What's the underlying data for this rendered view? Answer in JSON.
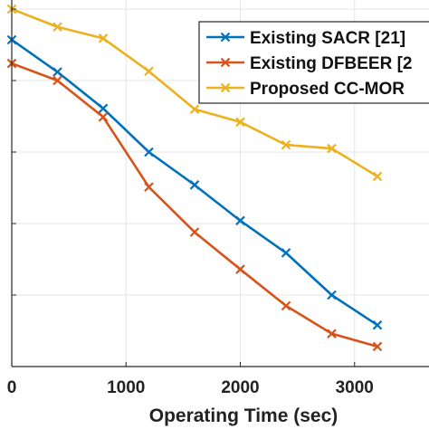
{
  "chart_data": {
    "type": "line",
    "title": "",
    "xlabel": "Operating Time (sec)",
    "ylabel": "",
    "xlim": [
      0,
      3200
    ],
    "ylim": [
      0.1,
      0.6
    ],
    "x_ticks": [
      0,
      1000,
      2000,
      3000
    ],
    "x_tick_labels": [
      "0",
      "1000",
      "2000",
      "3000"
    ],
    "y_ticks": [
      0.1,
      0.2,
      0.3,
      0.4,
      0.5,
      0.6
    ],
    "grid": true,
    "legend_position": "top-right",
    "x": [
      0,
      400,
      800,
      1200,
      1600,
      2000,
      2400,
      2800,
      3200
    ],
    "series": [
      {
        "name": "Existing SACR [21]",
        "color": "#0072BD",
        "marker": "x",
        "values": [
          0.557,
          0.512,
          0.461,
          0.4,
          0.354,
          0.304,
          0.259,
          0.2,
          0.158
        ]
      },
      {
        "name": "Existing DFBEER [2",
        "color": "#D95319",
        "marker": "x",
        "values": [
          0.524,
          0.5,
          0.449,
          0.351,
          0.288,
          0.236,
          0.185,
          0.146,
          0.128
        ]
      },
      {
        "name": "Proposed CC-MOR",
        "color": "#EDB120",
        "marker": "x",
        "values": [
          0.6,
          0.575,
          0.559,
          0.513,
          0.46,
          0.442,
          0.41,
          0.405,
          0.366
        ]
      }
    ]
  }
}
